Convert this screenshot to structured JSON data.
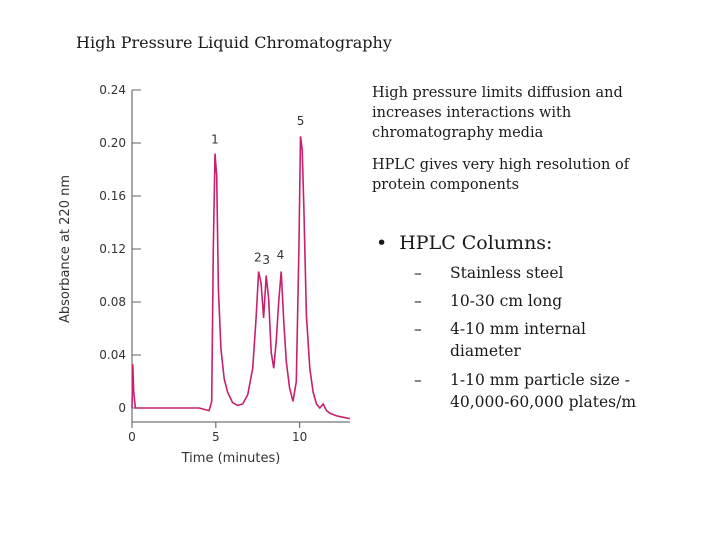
{
  "slide": {
    "title": "High Pressure Liquid Chromatography",
    "paragraphs": [
      "High pressure limits diffusion and increases interactions with chromatography media",
      "HPLC gives very high resolution of protein components"
    ],
    "bullet_heading": "HPLC Columns:",
    "sub_bullets": [
      "Stainless steel",
      "10-30 cm long",
      "4-10 mm internal diameter",
      "1-10 mm particle size - 40,000-60,000 plates/m"
    ]
  },
  "chart_data": {
    "type": "line",
    "xlabel": "Time (minutes)",
    "ylabel": "Absorbance at 220 nm",
    "xlim": [
      0,
      13
    ],
    "ylim": [
      0,
      0.24
    ],
    "x_ticks": [
      0,
      5,
      10
    ],
    "y_ticks": [
      0,
      0.04,
      0.08,
      0.12,
      0.16,
      0.2,
      0.24
    ],
    "y_tick_labels": [
      "0",
      "0.04",
      "0.08",
      "0.12",
      "0.16",
      "0.20",
      "0.24"
    ],
    "line_color": "#c8206e",
    "grid": false,
    "x": [
      0,
      0.05,
      0.1,
      0.2,
      0.5,
      1,
      2,
      3,
      4,
      4.6,
      4.75,
      4.85,
      4.95,
      5.05,
      5.15,
      5.3,
      5.5,
      5.7,
      6,
      6.3,
      6.6,
      6.9,
      7.2,
      7.4,
      7.55,
      7.7,
      7.85,
      8.0,
      8.15,
      8.3,
      8.45,
      8.6,
      8.75,
      8.9,
      9.05,
      9.2,
      9.4,
      9.6,
      9.8,
      9.95,
      10.05,
      10.15,
      10.25,
      10.4,
      10.6,
      10.8,
      11.0,
      11.2,
      11.4,
      11.6,
      11.8,
      12.2,
      12.6,
      13
    ],
    "y": [
      0.0,
      0.033,
      0.012,
      0.0,
      0.0,
      0.0,
      0.0,
      0.0,
      0.0,
      -0.002,
      0.005,
      0.12,
      0.192,
      0.175,
      0.09,
      0.045,
      0.022,
      0.012,
      0.004,
      0.002,
      0.003,
      0.01,
      0.03,
      0.068,
      0.103,
      0.094,
      0.068,
      0.1,
      0.082,
      0.042,
      0.03,
      0.05,
      0.08,
      0.103,
      0.065,
      0.035,
      0.015,
      0.005,
      0.02,
      0.12,
      0.205,
      0.195,
      0.15,
      0.07,
      0.03,
      0.012,
      0.003,
      0.0,
      0.003,
      -0.002,
      -0.004,
      -0.006,
      -0.007,
      -0.008
    ],
    "peak_labels": [
      {
        "label": "1",
        "x": 4.95,
        "y": 0.195
      },
      {
        "label": "2",
        "x": 7.5,
        "y": 0.106
      },
      {
        "label": "3",
        "x": 8.0,
        "y": 0.104
      },
      {
        "label": "4",
        "x": 8.85,
        "y": 0.108
      },
      {
        "label": "5",
        "x": 10.05,
        "y": 0.209
      }
    ]
  }
}
